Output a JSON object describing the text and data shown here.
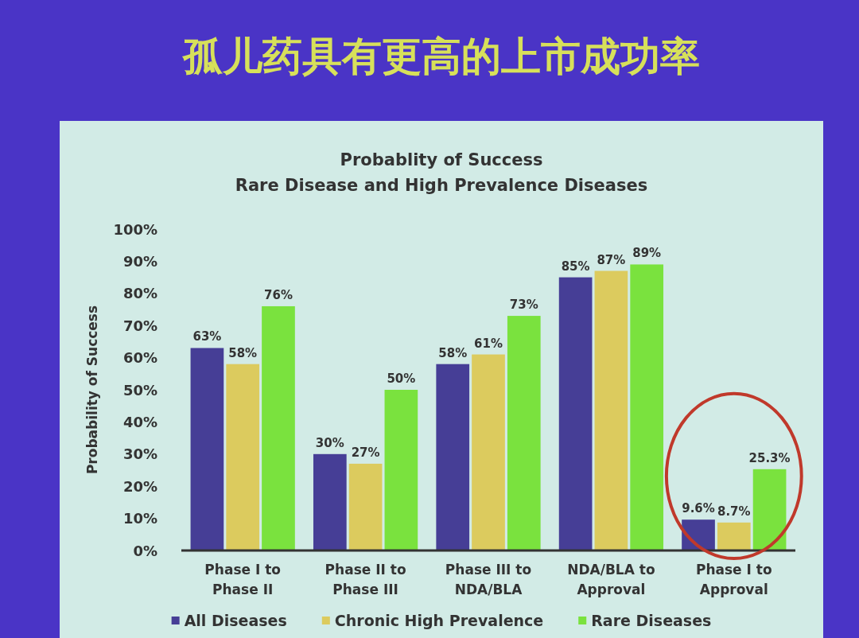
{
  "chart_data": {
    "type": "bar",
    "title": "孤儿药具有更高的上市成功率",
    "subtitle": "Probablity of Success\nRare Disease and High Prevalence Diseases",
    "ylabel": "Probability of Success",
    "categories": [
      "Phase I to Phase II",
      "Phase II to Phase III",
      "Phase III to NDA/BLA",
      "NDA/BLA to Approval",
      "Phase I to Approval"
    ],
    "series": [
      {
        "name": "All Diseases",
        "color": "#463e96",
        "values": [
          63,
          30,
          58,
          85,
          9.6
        ],
        "value_labels": [
          "63%",
          "30%",
          "58%",
          "85%",
          "9.6%"
        ]
      },
      {
        "name": "Chronic High Prevalence",
        "color": "#dccb5e",
        "values": [
          58,
          27,
          61,
          87,
          8.7
        ],
        "value_labels": [
          "58%",
          "27%",
          "61%",
          "87%",
          "8.7%"
        ]
      },
      {
        "name": "Rare Diseases",
        "color": "#7ae23e",
        "values": [
          76,
          50,
          73,
          89,
          25.3
        ],
        "value_labels": [
          "76%",
          "50%",
          "73%",
          "89%",
          "25.3%"
        ]
      }
    ],
    "ylim": [
      0,
      100
    ],
    "yticks": [
      {
        "value": 0,
        "label": "0%"
      },
      {
        "value": 10,
        "label": "10%"
      },
      {
        "value": 20,
        "label": "20%"
      },
      {
        "value": 30,
        "label": "30%"
      },
      {
        "value": 40,
        "label": "40%"
      },
      {
        "value": 50,
        "label": "50%"
      },
      {
        "value": 60,
        "label": "60%"
      },
      {
        "value": 70,
        "label": "70%"
      },
      {
        "value": 80,
        "label": "80%"
      },
      {
        "value": 90,
        "label": "90%"
      },
      {
        "value": 100,
        "label": "100%"
      }
    ],
    "legend": "bottom"
  }
}
